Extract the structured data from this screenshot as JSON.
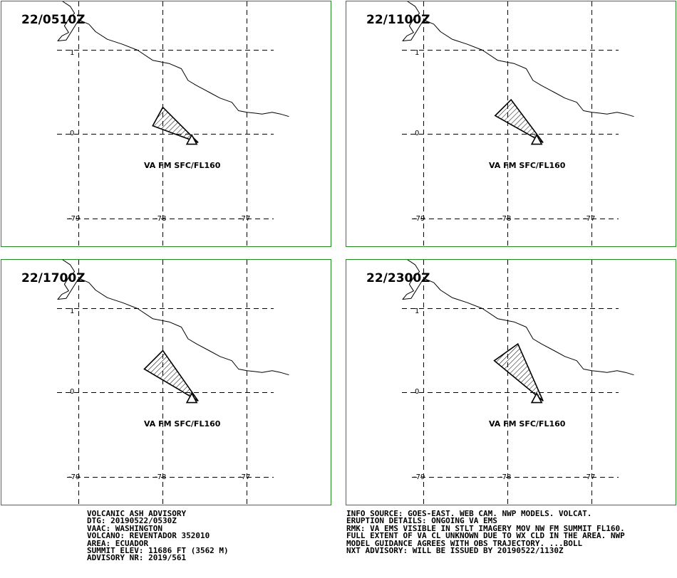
{
  "panels": [
    {
      "time": "22/0510Z",
      "label": "VA FM SFC/FL160",
      "ash": [
        [
          -77.58,
          -0.1
        ],
        [
          -78.0,
          0.32
        ],
        [
          -78.12,
          0.1
        ]
      ]
    },
    {
      "time": "22/1100Z",
      "label": "VA FM SFC/FL160",
      "ash": [
        [
          -77.58,
          -0.1
        ],
        [
          -77.96,
          0.41
        ],
        [
          -78.15,
          0.22
        ]
      ]
    },
    {
      "time": "22/1700Z",
      "label": "VA FM SFC/FL160",
      "ash": [
        [
          -77.58,
          -0.1
        ],
        [
          -78.0,
          0.5
        ],
        [
          -78.22,
          0.28
        ]
      ]
    },
    {
      "time": "22/2300Z",
      "label": "VA FM SFC/FL160",
      "ash": [
        [
          -77.58,
          -0.1
        ],
        [
          -77.88,
          0.58
        ],
        [
          -78.16,
          0.38
        ]
      ]
    }
  ],
  "map": {
    "lon_ticks": [
      "-79",
      "-78",
      "-77"
    ],
    "lat_ticks": [
      "1",
      "0"
    ],
    "volcano": {
      "lon": -77.656,
      "lat": -0.077
    },
    "coastline": [
      [
        -79.25,
        1.62
      ],
      [
        -79.1,
        1.52
      ],
      [
        -79.05,
        1.44
      ],
      [
        -79.12,
        1.37
      ],
      [
        -79.17,
        1.29
      ],
      [
        -79.12,
        1.21
      ],
      [
        -79.2,
        1.17
      ],
      [
        -79.25,
        1.11
      ],
      [
        -79.15,
        1.12
      ],
      [
        -79.0,
        1.36
      ],
      [
        -78.88,
        1.31
      ],
      [
        -78.8,
        1.22
      ],
      [
        -78.66,
        1.13
      ],
      [
        -78.48,
        1.07
      ],
      [
        -78.3,
        1.0
      ],
      [
        -78.12,
        0.88
      ],
      [
        -77.92,
        0.84
      ],
      [
        -77.78,
        0.78
      ],
      [
        -77.7,
        0.64
      ],
      [
        -77.6,
        0.58
      ],
      [
        -77.45,
        0.5
      ],
      [
        -77.32,
        0.43
      ],
      [
        -77.18,
        0.38
      ],
      [
        -77.1,
        0.28
      ],
      [
        -77.0,
        0.26
      ],
      [
        -76.9,
        0.25
      ],
      [
        -76.82,
        0.24
      ],
      [
        -76.7,
        0.26
      ],
      [
        -76.6,
        0.24
      ],
      [
        -76.5,
        0.21
      ]
    ]
  },
  "advisory_left": [
    "VOLCANIC ASH ADVISORY",
    "DTG: 20190522/0530Z",
    "VAAC: WASHINGTON",
    "VOLCANO: REVENTADOR 352010",
    "AREA: ECUADOR",
    "SUMMIT ELEV: 11686 FT (3562 M)",
    "ADVISORY NR: 2019/561"
  ],
  "advisory_right": [
    "INFO SOURCE: GOES-EAST. WEB CAM. NWP MODELS. VOLCAT.",
    "ERUPTION DETAILS: ONGOING VA EMS",
    "RMK: VA EMS VISIBLE IN STLT IMAGERY MOV NW FM SUMMIT FL160.",
    "FULL EXTENT OF VA CL UNKNOWN DUE TO WX CLD IN THE AREA. NWP",
    "MODEL GUIDANCE AGREES WITH OBS TRAJECTORY. ...BOLL",
    "NXT ADVISORY: WILL BE ISSUED BY 20190522/1130Z"
  ],
  "colors": {
    "panel_border": "#1f8a1f",
    "ink": "#000000",
    "background": "#ffffff"
  }
}
